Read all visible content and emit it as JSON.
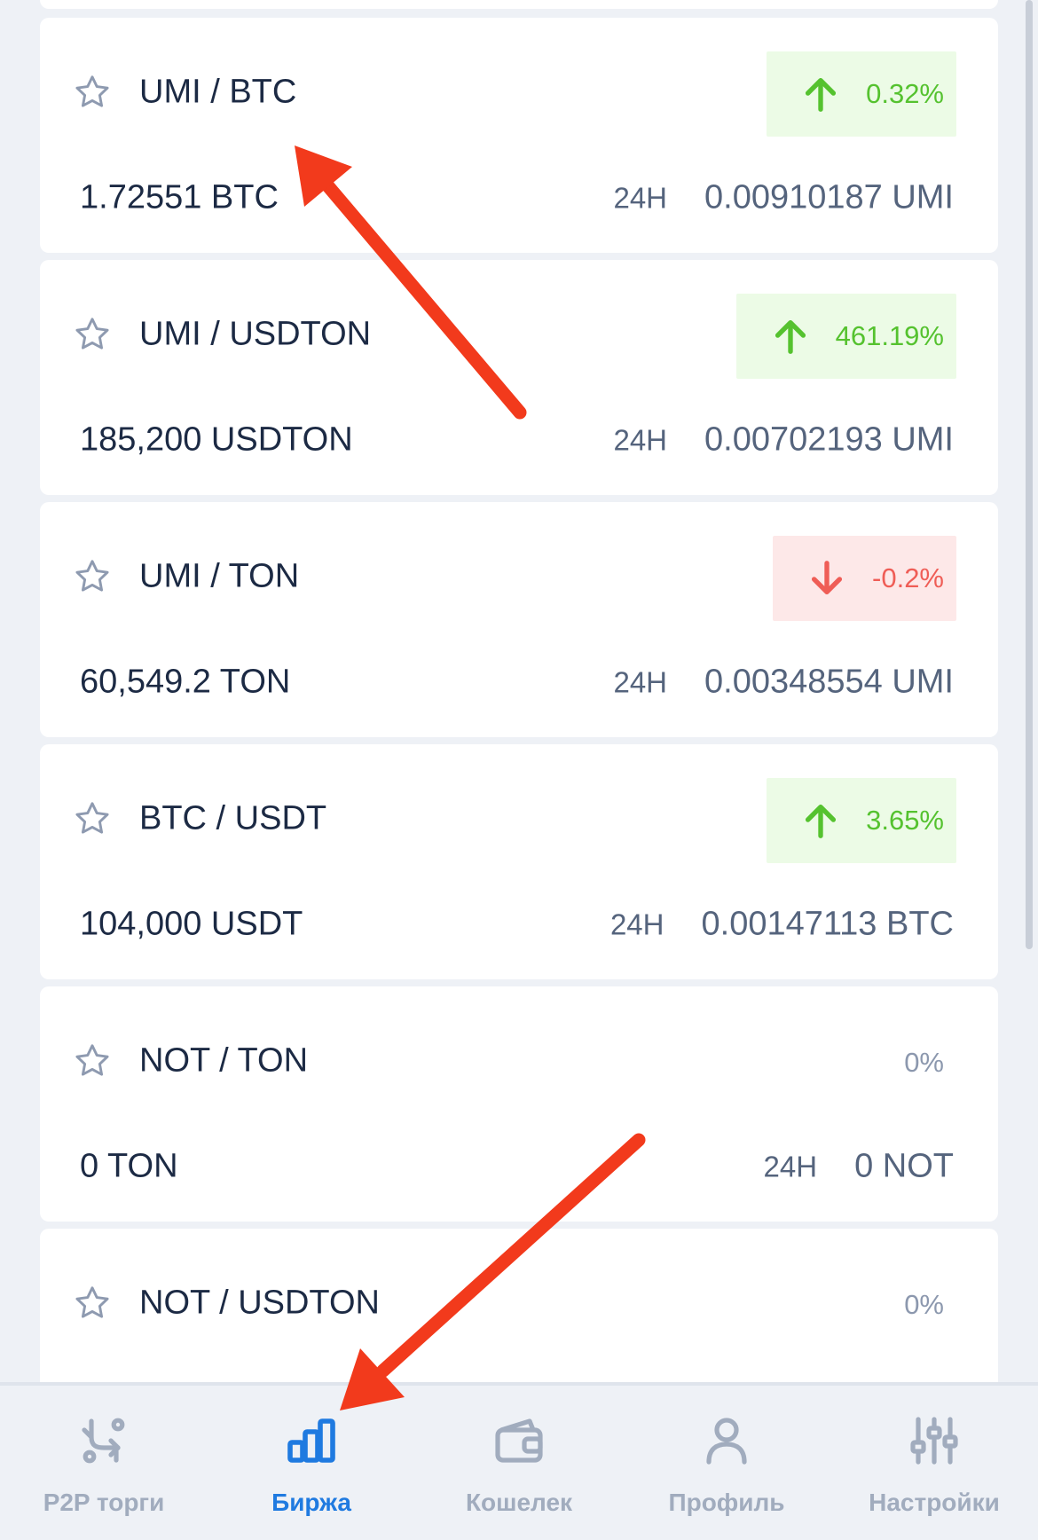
{
  "pairs": [
    {
      "name": "UMI / BTC",
      "change": "0.32%",
      "trend": "up",
      "volume": "1.72551 BTC",
      "period": "24H",
      "last": "0.00910187 UMI"
    },
    {
      "name": "UMI / USDTON",
      "change": "461.19%",
      "trend": "up",
      "volume": "185,200 USDTON",
      "period": "24H",
      "last": "0.00702193 UMI"
    },
    {
      "name": "UMI / TON",
      "change": "-0.2%",
      "trend": "down",
      "volume": "60,549.2 TON",
      "period": "24H",
      "last": "0.00348554 UMI"
    },
    {
      "name": "BTC / USDT",
      "change": "3.65%",
      "trend": "up",
      "volume": "104,000 USDT",
      "period": "24H",
      "last": "0.00147113 BTC"
    },
    {
      "name": "NOT / TON",
      "change": "0%",
      "trend": "flat",
      "volume": "0 TON",
      "period": "24H",
      "last": "0 NOT"
    },
    {
      "name": "NOT / USDTON",
      "change": "0%",
      "trend": "flat"
    }
  ],
  "nav": {
    "items": [
      {
        "label": "P2P торги",
        "icon": "p2p-exchange-icon"
      },
      {
        "label": "Биржа",
        "icon": "bar-chart-icon"
      },
      {
        "label": "Кошелек",
        "icon": "wallet-icon"
      },
      {
        "label": "Профиль",
        "icon": "person-icon"
      },
      {
        "label": "Настройки",
        "icon": "sliders-icon"
      }
    ],
    "active_index": 1
  },
  "colors": {
    "up": "#55c22f",
    "up_bg": "#ecfbe6",
    "down": "#ef5d56",
    "down_bg": "#fde8e8",
    "flat": "#8c98ae",
    "accent": "#1f7ae0",
    "annotation_arrow": "#f23a1c"
  }
}
